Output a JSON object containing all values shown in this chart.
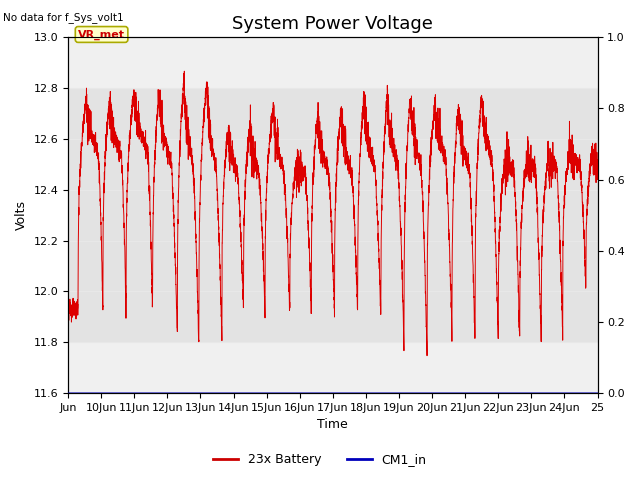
{
  "title": "System Power Voltage",
  "top_left_text": "No data for f_Sys_volt1",
  "ylabel_left": "Volts",
  "xlabel": "Time",
  "ylim_left": [
    11.6,
    13.0
  ],
  "ylim_right": [
    0.0,
    1.0
  ],
  "yticks_left": [
    11.6,
    11.8,
    12.0,
    12.2,
    12.4,
    12.6,
    12.8,
    13.0
  ],
  "yticks_right": [
    0.0,
    0.2,
    0.4,
    0.6,
    0.8,
    1.0
  ],
  "xtick_labels": [
    "Jun",
    "10Jun",
    "11Jun",
    "12Jun",
    "13Jun",
    "14Jun",
    "15Jun",
    "16Jun",
    "17Jun",
    "18Jun",
    "19Jun",
    "20Jun",
    "21Jun",
    "22Jun",
    "23Jun",
    "24Jun",
    "25"
  ],
  "annotation_label": "VR_met",
  "annotation_color": "#cc0000",
  "annotation_bg": "#ffffcc",
  "annotation_border": "#aaaa00",
  "legend_entries": [
    "23x Battery",
    "CM1_in"
  ],
  "legend_colors": [
    "#cc0000",
    "#0000bb"
  ],
  "background_color": "#ffffff",
  "plot_bg_color": "#f0f0f0",
  "gray_band_color": "#d8d8d8",
  "grid_color": "#e8e8e8",
  "line_color_battery": "#dd0000",
  "line_color_cm1": "#0000bb",
  "title_fontsize": 13,
  "axis_fontsize": 9,
  "tick_fontsize": 8,
  "legend_fontsize": 9
}
